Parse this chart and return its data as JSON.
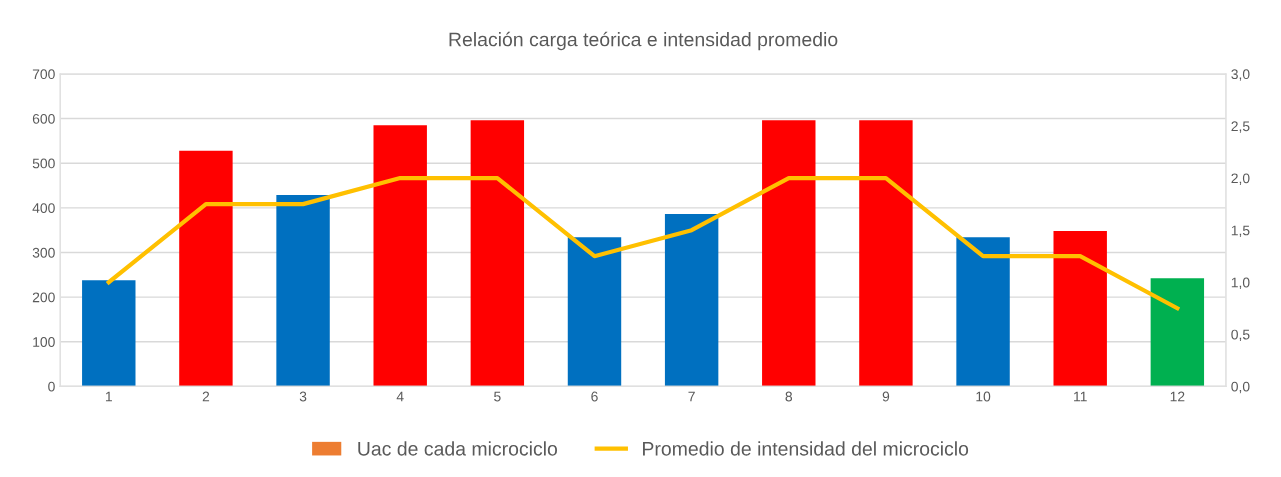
{
  "chart_data": {
    "type": "bar",
    "title": "Relación carga teórica e intensidad promedio",
    "categories": [
      "1",
      "2",
      "3",
      "4",
      "5",
      "6",
      "7",
      "8",
      "9",
      "10",
      "11",
      "12"
    ],
    "series": [
      {
        "name": "Uac de cada microciclo",
        "color": "#ed7d31",
        "colors": [
          "#0070c0",
          "#ff0000",
          "#0070c0",
          "#ff0000",
          "#ff0000",
          "#0070c0",
          "#0070c0",
          "#ff0000",
          "#ff0000",
          "#0070c0",
          "#ff0000",
          "#00b050"
        ],
        "values": [
          238,
          528,
          429,
          585,
          596,
          334,
          386,
          596,
          596,
          334,
          348,
          242
        ]
      },
      {
        "name": "Promedio de intensidad del microciclo",
        "type": "line",
        "axis": "y2",
        "color": "#ffc000",
        "values": [
          1.0,
          1.75,
          1.75,
          2.0,
          2.0,
          1.25,
          1.5,
          2.0,
          2.0,
          1.25,
          1.25,
          0.75
        ]
      }
    ],
    "ylim": [
      0,
      700
    ],
    "yticks": [
      0,
      100,
      200,
      300,
      400,
      500,
      600,
      700
    ],
    "y2lim": [
      0,
      3.0
    ],
    "y2ticks": [
      {
        "value": 0,
        "label": "0,0"
      },
      {
        "value": 0.5,
        "label": "0,5"
      },
      {
        "value": 1.0,
        "label": "1,0"
      },
      {
        "value": 1.5,
        "label": "1,5"
      },
      {
        "value": 2.0,
        "label": "2,0"
      },
      {
        "value": 2.5,
        "label": "2,5"
      },
      {
        "value": 3.0,
        "label": "3,0"
      }
    ],
    "grid": "y",
    "legend": "bottom",
    "marker": "none",
    "line_style": "solid"
  }
}
